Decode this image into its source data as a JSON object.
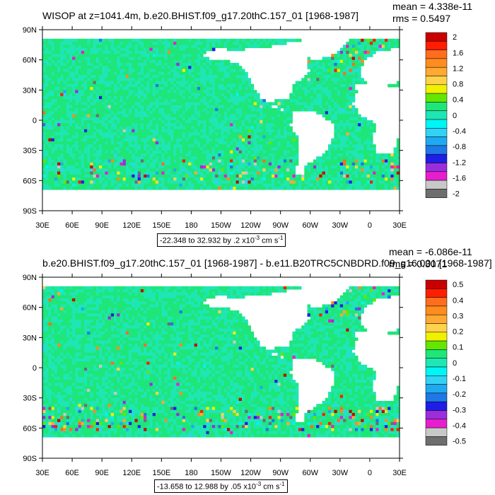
{
  "palette": [
    "#6e6e6e",
    "#c8c8c8",
    "#e61ecd",
    "#9b2ddc",
    "#1e1ee6",
    "#1e78e6",
    "#1eaaf0",
    "#32d2f5",
    "#00f5f5",
    "#1ee6b4",
    "#1ee678",
    "#64e600",
    "#f0f000",
    "#ffd24b",
    "#ffa832",
    "#ff8c1e",
    "#ff6e1e",
    "#ff1e00",
    "#c80000"
  ],
  "chart_data": [
    {
      "type": "heatmap",
      "title": "WISOP at z=1041.4m, b.e20.BHIST.f09_g17.20thC.157_01 [1968-1987]",
      "mean": "mean = 4.338e-11",
      "rms": "rms = 0.5497",
      "caption_main": "-22.348 to 32.932 by .2 x10",
      "caption_exp": "-3",
      "caption_unit": " cm s",
      "caption_unit_exp": "-1",
      "x_ticks": [
        "30E",
        "60E",
        "90E",
        "120E",
        "150E",
        "180",
        "150W",
        "120W",
        "90W",
        "60W",
        "30W",
        "0",
        "30E"
      ],
      "y_ticks": [
        "90N",
        "60N",
        "30N",
        "0",
        "30S",
        "60S",
        "90S"
      ],
      "colorbar_labels": [
        "2",
        "1.6",
        "1.2",
        "0.8",
        "0.4",
        "0",
        "-0.4",
        "-0.8",
        "-1.2",
        "-1.6",
        "-2"
      ],
      "noise": 0.55
    },
    {
      "type": "heatmap",
      "title": "b.e20.BHIST.f09_g17.20thC.157_01 [1968-1987] - b.e11.B20TRC5CNBDRD.f09_g16.001 [1968-1987]",
      "mean": "mean = -6.086e-11",
      "rms": "rms = 0.3071",
      "caption_main": "-13.658 to 12.988 by .05 x10",
      "caption_exp": "-3",
      "caption_unit": " cm s",
      "caption_unit_exp": "-1",
      "x_ticks": [
        "30E",
        "60E",
        "90E",
        "120E",
        "150E",
        "180",
        "150W",
        "120W",
        "90W",
        "60W",
        "30W",
        "0",
        "30E"
      ],
      "y_ticks": [
        "90N",
        "60N",
        "30N",
        "0",
        "30S",
        "60S",
        "90S"
      ],
      "colorbar_labels": [
        "0.5",
        "0.4",
        "0.3",
        "0.2",
        "0.1",
        "0",
        "-0.1",
        "-0.2",
        "-0.3",
        "-0.4",
        "-0.5"
      ],
      "noise": 0.7
    }
  ]
}
